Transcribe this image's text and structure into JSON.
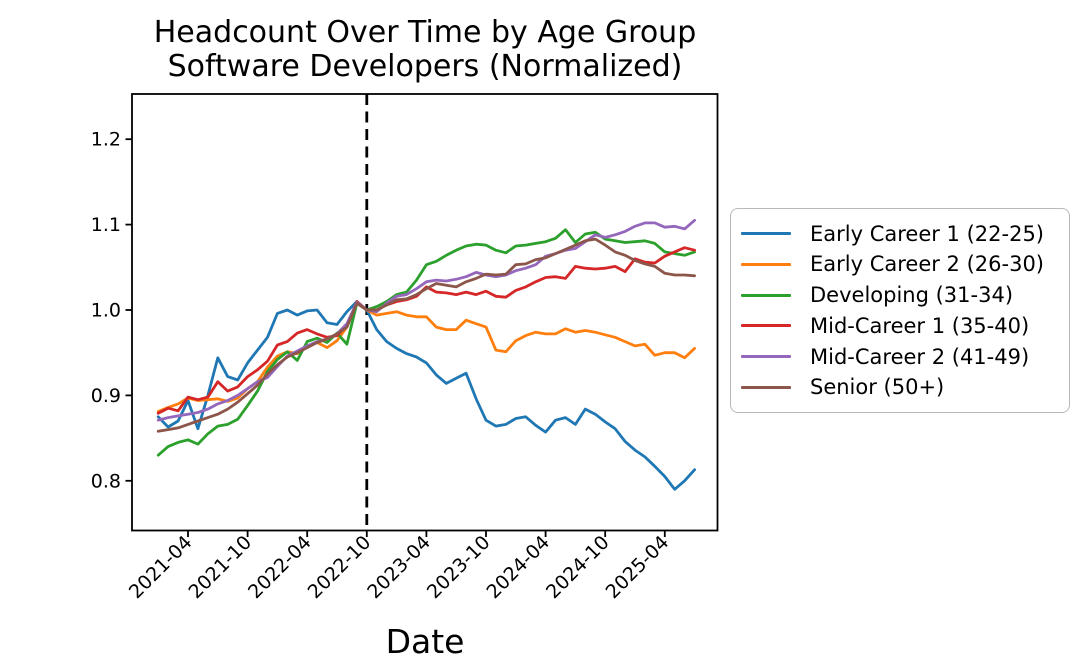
{
  "chart": {
    "title_line1": "Headcount Over Time by Age Group",
    "title_line2": "Software Developers (Normalized)",
    "xlabel": "Date"
  },
  "chart_data": {
    "type": "line",
    "title": "Headcount Over Time by Age Group",
    "subtitle": "Software Developers (Normalized)",
    "xlabel": "Date",
    "ylabel": "",
    "x_unit": "month",
    "x_start": "2021-01",
    "x_end": "2025-07",
    "grid": false,
    "legend_position": "outside-right",
    "x_tick_month_indices": [
      3,
      9,
      15,
      21,
      27,
      33,
      39,
      45,
      51
    ],
    "x_tick_labels": [
      "2021-04",
      "2021-10",
      "2022-04",
      "2022-10",
      "2023-04",
      "2023-10",
      "2024-04",
      "2024-10",
      "2025-04"
    ],
    "y_tick_labels": [
      "0.8",
      "0.9",
      "1.0",
      "1.1",
      "1.2"
    ],
    "ylim": [
      0.745,
      1.255
    ],
    "event_line": {
      "month_index": 21,
      "date": "2022-10",
      "style": "dashed",
      "color": "#000000"
    },
    "series": [
      {
        "name": "Early Career 1 (22-25)",
        "color": "#1f77b4",
        "values": [
          0.875,
          0.863,
          0.87,
          0.894,
          0.861,
          0.9,
          0.944,
          0.922,
          0.918,
          0.938,
          0.953,
          0.968,
          0.996,
          1.0,
          0.994,
          0.999,
          1.0,
          0.985,
          0.983,
          0.998,
          1.01,
          1.0,
          0.977,
          0.963,
          0.955,
          0.949,
          0.945,
          0.938,
          0.924,
          0.914,
          0.92,
          0.926,
          0.896,
          0.871,
          0.864,
          0.866,
          0.873,
          0.875,
          0.865,
          0.857,
          0.871,
          0.874,
          0.866,
          0.884,
          0.878,
          0.869,
          0.861,
          0.846,
          0.836,
          0.828,
          0.817,
          0.805,
          0.79,
          0.8,
          0.813
        ]
      },
      {
        "name": "Early Career 2 (26-30)",
        "color": "#ff7f0e",
        "values": [
          0.881,
          0.886,
          0.89,
          0.897,
          0.894,
          0.895,
          0.896,
          0.893,
          0.897,
          0.908,
          0.916,
          0.933,
          0.946,
          0.951,
          0.949,
          0.958,
          0.962,
          0.956,
          0.964,
          0.98,
          1.008,
          1.0,
          0.994,
          0.996,
          0.998,
          0.994,
          0.992,
          0.992,
          0.98,
          0.977,
          0.977,
          0.988,
          0.984,
          0.98,
          0.953,
          0.951,
          0.964,
          0.97,
          0.974,
          0.972,
          0.972,
          0.978,
          0.974,
          0.976,
          0.974,
          0.971,
          0.968,
          0.963,
          0.958,
          0.96,
          0.947,
          0.95,
          0.95,
          0.944,
          0.955
        ]
      },
      {
        "name": "Developing (31-34)",
        "color": "#2ca02c",
        "values": [
          0.83,
          0.84,
          0.845,
          0.848,
          0.843,
          0.855,
          0.864,
          0.866,
          0.872,
          0.888,
          0.905,
          0.928,
          0.942,
          0.951,
          0.941,
          0.963,
          0.967,
          0.962,
          0.973,
          0.96,
          1.008,
          1.0,
          1.004,
          1.01,
          1.018,
          1.021,
          1.035,
          1.053,
          1.057,
          1.064,
          1.07,
          1.075,
          1.077,
          1.076,
          1.07,
          1.067,
          1.075,
          1.076,
          1.078,
          1.08,
          1.084,
          1.094,
          1.079,
          1.089,
          1.091,
          1.083,
          1.081,
          1.079,
          1.08,
          1.081,
          1.078,
          1.068,
          1.066,
          1.064,
          1.068
        ]
      },
      {
        "name": "Mid-Career 1 (35-40)",
        "color": "#d62728",
        "values": [
          0.879,
          0.885,
          0.882,
          0.898,
          0.895,
          0.898,
          0.916,
          0.905,
          0.91,
          0.922,
          0.93,
          0.94,
          0.959,
          0.963,
          0.973,
          0.977,
          0.972,
          0.968,
          0.97,
          0.982,
          1.01,
          1.0,
          1.0,
          1.006,
          1.01,
          1.012,
          1.016,
          1.027,
          1.021,
          1.02,
          1.018,
          1.021,
          1.018,
          1.022,
          1.016,
          1.015,
          1.023,
          1.027,
          1.033,
          1.038,
          1.039,
          1.037,
          1.051,
          1.049,
          1.048,
          1.049,
          1.051,
          1.045,
          1.06,
          1.056,
          1.055,
          1.063,
          1.068,
          1.073,
          1.07
        ]
      },
      {
        "name": "Mid-Career 2 (41-49)",
        "color": "#9467bd",
        "values": [
          0.871,
          0.874,
          0.876,
          0.878,
          0.88,
          0.884,
          0.89,
          0.894,
          0.9,
          0.908,
          0.916,
          0.921,
          0.934,
          0.946,
          0.952,
          0.958,
          0.963,
          0.966,
          0.972,
          0.984,
          1.009,
          1.0,
          0.998,
          1.008,
          1.016,
          1.018,
          1.025,
          1.033,
          1.035,
          1.034,
          1.036,
          1.039,
          1.044,
          1.041,
          1.039,
          1.041,
          1.046,
          1.049,
          1.053,
          1.063,
          1.066,
          1.07,
          1.072,
          1.08,
          1.088,
          1.085,
          1.088,
          1.092,
          1.098,
          1.102,
          1.102,
          1.097,
          1.098,
          1.095,
          1.105
        ]
      },
      {
        "name": "Senior (50+)",
        "color": "#8c564b",
        "values": [
          0.858,
          0.86,
          0.862,
          0.866,
          0.87,
          0.874,
          0.878,
          0.884,
          0.892,
          0.902,
          0.912,
          0.925,
          0.936,
          0.945,
          0.95,
          0.956,
          0.962,
          0.966,
          0.972,
          0.98,
          1.008,
          1.0,
          1.0,
          1.006,
          1.012,
          1.013,
          1.018,
          1.025,
          1.031,
          1.029,
          1.027,
          1.033,
          1.037,
          1.042,
          1.041,
          1.042,
          1.053,
          1.054,
          1.059,
          1.061,
          1.066,
          1.071,
          1.076,
          1.081,
          1.083,
          1.076,
          1.068,
          1.064,
          1.058,
          1.054,
          1.051,
          1.043,
          1.041,
          1.041,
          1.04
        ]
      }
    ]
  },
  "legend": {
    "entries": [
      {
        "label": "Early Career 1 (22-25)",
        "color": "#1f77b4"
      },
      {
        "label": "Early Career 2 (26-30)",
        "color": "#ff7f0e"
      },
      {
        "label": "Developing (31-34)",
        "color": "#2ca02c"
      },
      {
        "label": "Mid-Career 1 (35-40)",
        "color": "#d62728"
      },
      {
        "label": "Mid-Career 2 (41-49)",
        "color": "#9467bd"
      },
      {
        "label": "Senior (50+)",
        "color": "#8c564b"
      }
    ]
  }
}
